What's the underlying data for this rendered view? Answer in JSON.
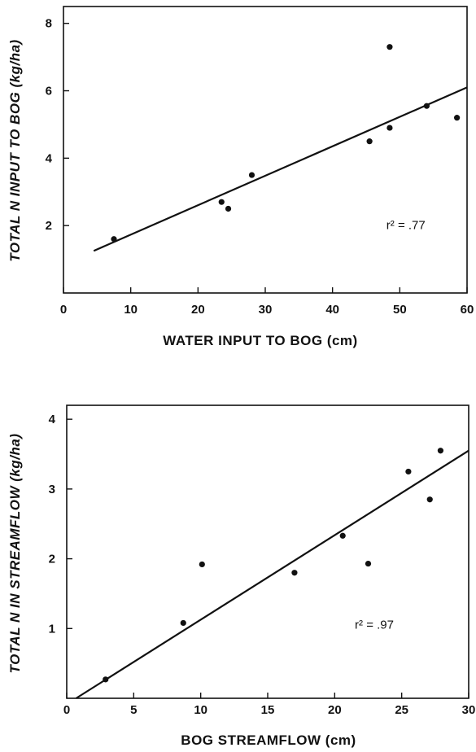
{
  "chart_data": [
    {
      "type": "scatter",
      "xlabel": "WATER INPUT TO BOG (cm)",
      "ylabel": "TOTAL N INPUT TO BOG (kg/ha)",
      "xlim": [
        0,
        60
      ],
      "ylim": [
        0,
        8.5
      ],
      "xticks": [
        "0",
        "10",
        "20",
        "30",
        "40",
        "50",
        "60"
      ],
      "yticks": [
        "2",
        "4",
        "6",
        "8"
      ],
      "points": [
        {
          "x": 7.5,
          "y": 1.6
        },
        {
          "x": 23.5,
          "y": 2.7
        },
        {
          "x": 24.5,
          "y": 2.5
        },
        {
          "x": 28.0,
          "y": 3.5
        },
        {
          "x": 45.5,
          "y": 4.5
        },
        {
          "x": 48.5,
          "y": 4.9
        },
        {
          "x": 48.5,
          "y": 7.3
        },
        {
          "x": 54.0,
          "y": 5.55
        },
        {
          "x": 58.5,
          "y": 5.2
        }
      ],
      "fit_line": {
        "x": [
          4.5,
          60
        ],
        "y": [
          1.25,
          6.1
        ]
      },
      "annotation": {
        "label": "r² = .77",
        "x": 48,
        "y": 1.9
      }
    },
    {
      "type": "scatter",
      "xlabel": "BOG STREAMFLOW (cm)",
      "ylabel": "TOTAL N IN STREAMFLOW (kg/ha)",
      "xlim": [
        0,
        30
      ],
      "ylim": [
        0,
        4.2
      ],
      "xticks": [
        "0",
        "5",
        "10",
        "15",
        "20",
        "25",
        "30"
      ],
      "yticks": [
        "1",
        "2",
        "3",
        "4"
      ],
      "points": [
        {
          "x": 2.9,
          "y": 0.27
        },
        {
          "x": 8.7,
          "y": 1.08
        },
        {
          "x": 10.1,
          "y": 1.92
        },
        {
          "x": 17.0,
          "y": 1.8
        },
        {
          "x": 20.6,
          "y": 2.33
        },
        {
          "x": 22.5,
          "y": 1.93
        },
        {
          "x": 25.5,
          "y": 3.25
        },
        {
          "x": 27.1,
          "y": 2.85
        },
        {
          "x": 27.9,
          "y": 3.55
        }
      ],
      "fit_line": {
        "x": [
          0.7,
          30
        ],
        "y": [
          0,
          3.55
        ]
      },
      "annotation": {
        "label": "r² = .97",
        "x": 21.5,
        "y": 1.0
      }
    }
  ]
}
